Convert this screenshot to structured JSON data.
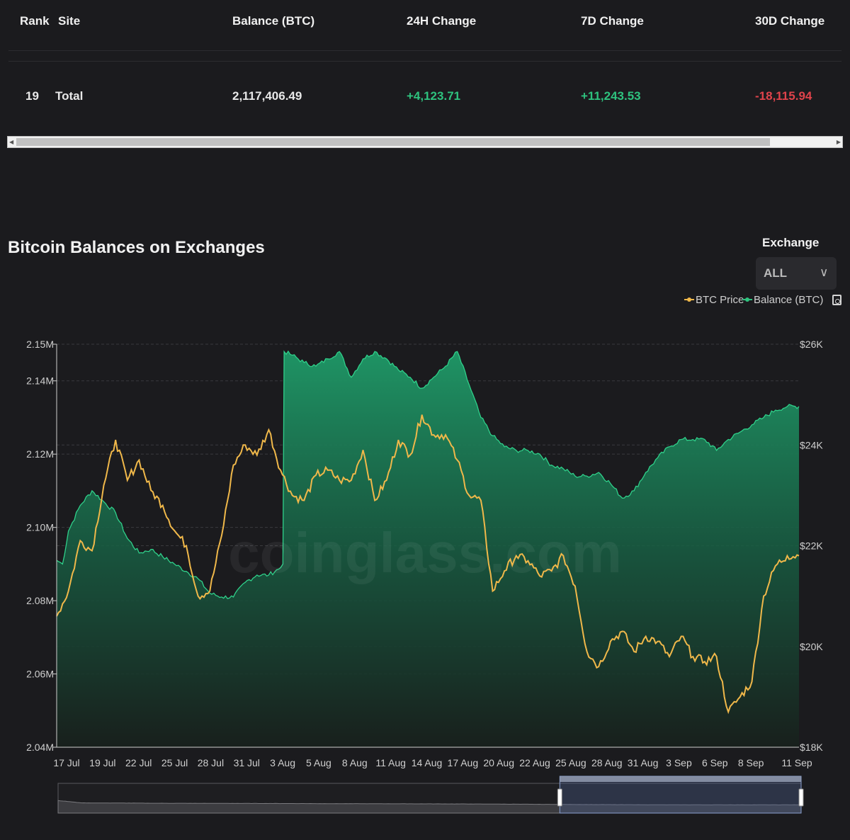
{
  "table": {
    "headers": {
      "rank": "Rank",
      "site": "Site",
      "balance": "Balance (BTC)",
      "change_24h": "24H Change",
      "change_7d": "7D Change",
      "change_30d": "30D Change"
    },
    "row": {
      "rank": "19",
      "site": "Total",
      "balance": "2,117,406.49",
      "change_24h": "+4,123.71",
      "change_7d": "+11,243.53",
      "change_30d": "-18,115.94"
    },
    "colors": {
      "positive": "#2ec27e",
      "negative": "#e0434b"
    }
  },
  "section": {
    "title": "Bitcoin Balances on Exchanges",
    "exchange_label": "Exchange",
    "exchange_value": "ALL",
    "chevron_icon": "chevron-down-icon"
  },
  "legend": {
    "btc_price": "BTC Price",
    "balance": "Balance (BTC)"
  },
  "watermark": "coinglass.com",
  "chart_data": {
    "type": "area",
    "title": "Bitcoin Balances on Exchanges",
    "x_tick_labels": [
      "17 Jul",
      "19 Jul",
      "22 Jul",
      "25 Jul",
      "28 Jul",
      "31 Jul",
      "3 Aug",
      "5 Aug",
      "8 Aug",
      "11 Aug",
      "14 Aug",
      "17 Aug",
      "20 Aug",
      "22 Aug",
      "25 Aug",
      "28 Aug",
      "31 Aug",
      "3 Sep",
      "6 Sep",
      "8 Sep",
      "11 Sep"
    ],
    "y_left_ticks": [
      "2.04M",
      "2.06M",
      "2.08M",
      "2.10M",
      "2.12M",
      "2.14M",
      "2.15M"
    ],
    "y_left_values": [
      2040000,
      2060000,
      2080000,
      2100000,
      2120000,
      2140000,
      2150000
    ],
    "y_right_ticks": [
      "$18K",
      "$20K",
      "$22K",
      "$24K",
      "$26K"
    ],
    "y_right_values": [
      18000,
      20000,
      22000,
      24000,
      26000
    ],
    "grid": "horizontal dashed",
    "legend_position": "top-right",
    "series": [
      {
        "name": "Balance (BTC)",
        "type": "area",
        "axis": "left",
        "color": "#1fa870",
        "points": [
          [
            0,
            2091000
          ],
          [
            0.5,
            2090000
          ],
          [
            1,
            2099000
          ],
          [
            2,
            2106000
          ],
          [
            3,
            2110000
          ],
          [
            4,
            2107000
          ],
          [
            5,
            2104000
          ],
          [
            6,
            2097000
          ],
          [
            7,
            2093000
          ],
          [
            8,
            2094000
          ],
          [
            9,
            2092000
          ],
          [
            10,
            2090000
          ],
          [
            11,
            2088000
          ],
          [
            12,
            2086000
          ],
          [
            13,
            2082000
          ],
          [
            14,
            2081000
          ],
          [
            15,
            2081000
          ],
          [
            16,
            2085000
          ],
          [
            17,
            2087000
          ],
          [
            18,
            2087000
          ],
          [
            19,
            2089000
          ],
          [
            19.2,
            2090000
          ],
          [
            19.3,
            2148000
          ],
          [
            20,
            2147000
          ],
          [
            21,
            2145000
          ],
          [
            22,
            2144000
          ],
          [
            23,
            2146000
          ],
          [
            24,
            2148000
          ],
          [
            25,
            2141000
          ],
          [
            26,
            2146000
          ],
          [
            27,
            2148000
          ],
          [
            28,
            2146000
          ],
          [
            29,
            2143000
          ],
          [
            30,
            2141000
          ],
          [
            31,
            2138000
          ],
          [
            32,
            2141000
          ],
          [
            33,
            2144000
          ],
          [
            34,
            2148000
          ],
          [
            35,
            2139000
          ],
          [
            36,
            2130000
          ],
          [
            37,
            2125000
          ],
          [
            38,
            2122000
          ],
          [
            39,
            2121000
          ],
          [
            40,
            2121000
          ],
          [
            41,
            2120000
          ],
          [
            42,
            2117000
          ],
          [
            43,
            2116000
          ],
          [
            44,
            2114000
          ],
          [
            45,
            2114000
          ],
          [
            46,
            2115000
          ],
          [
            47,
            2112000
          ],
          [
            48,
            2108000
          ],
          [
            49,
            2110000
          ],
          [
            50,
            2115000
          ],
          [
            51,
            2119000
          ],
          [
            52,
            2122000
          ],
          [
            53,
            2124000
          ],
          [
            54,
            2124000
          ],
          [
            55,
            2124000
          ],
          [
            56,
            2121000
          ],
          [
            57,
            2124000
          ],
          [
            58,
            2126000
          ],
          [
            59,
            2128000
          ],
          [
            60,
            2130000
          ],
          [
            61,
            2132000
          ],
          [
            62,
            2133000
          ],
          [
            63,
            2133000
          ]
        ]
      },
      {
        "name": "BTC Price",
        "type": "line",
        "axis": "right",
        "color": "#f0b84a",
        "points": [
          [
            0,
            20600
          ],
          [
            1,
            21100
          ],
          [
            2,
            22100
          ],
          [
            3,
            21900
          ],
          [
            4,
            23200
          ],
          [
            5,
            24100
          ],
          [
            6,
            23300
          ],
          [
            7,
            23700
          ],
          [
            8,
            23100
          ],
          [
            9,
            22800
          ],
          [
            10,
            22300
          ],
          [
            11,
            22000
          ],
          [
            12,
            21000
          ],
          [
            13,
            21100
          ],
          [
            14,
            22200
          ],
          [
            15,
            23600
          ],
          [
            16,
            24000
          ],
          [
            17,
            23800
          ],
          [
            18,
            24300
          ],
          [
            19,
            23500
          ],
          [
            20,
            23000
          ],
          [
            21,
            22900
          ],
          [
            22,
            23400
          ],
          [
            23,
            23500
          ],
          [
            24,
            23300
          ],
          [
            25,
            23300
          ],
          [
            26,
            23900
          ],
          [
            27,
            22900
          ],
          [
            28,
            23300
          ],
          [
            29,
            24100
          ],
          [
            30,
            23800
          ],
          [
            31,
            24600
          ],
          [
            32,
            24200
          ],
          [
            33,
            24200
          ],
          [
            34,
            23700
          ],
          [
            35,
            23000
          ],
          [
            36,
            22900
          ],
          [
            37,
            21100
          ],
          [
            38,
            21500
          ],
          [
            39,
            21800
          ],
          [
            40,
            21700
          ],
          [
            41,
            21400
          ],
          [
            42,
            21500
          ],
          [
            43,
            21800
          ],
          [
            44,
            21200
          ],
          [
            45,
            19900
          ],
          [
            46,
            19600
          ],
          [
            47,
            20100
          ],
          [
            48,
            20300
          ],
          [
            49,
            19900
          ],
          [
            50,
            20200
          ],
          [
            51,
            20100
          ],
          [
            52,
            19800
          ],
          [
            53,
            20200
          ],
          [
            54,
            19800
          ],
          [
            55,
            19700
          ],
          [
            56,
            19800
          ],
          [
            57,
            18700
          ],
          [
            58,
            19000
          ],
          [
            59,
            19300
          ],
          [
            60,
            21000
          ],
          [
            61,
            21600
          ],
          [
            62,
            21800
          ],
          [
            63,
            21800
          ]
        ]
      }
    ],
    "range_selector": {
      "start": 0.68,
      "end": 1.0
    }
  }
}
